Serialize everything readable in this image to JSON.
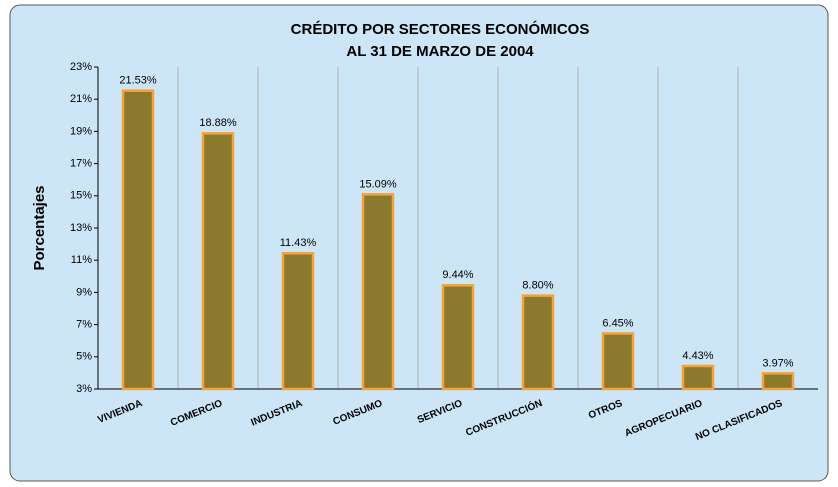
{
  "chart_data": {
    "type": "bar",
    "title": [
      "CRÉDITO POR SECTORES ECONÓMICOS",
      "AL 31 DE MARZO DE 2004"
    ],
    "y_label": "Porcentajes",
    "categories": [
      "VIVIENDA",
      "COMERCIO",
      "INDUSTRIA",
      "CONSUMO",
      "SERVICIO",
      "CONSTRUCCIÓN",
      "OTROS",
      "AGROPECUARIO",
      "NO CLASIFICADOS"
    ],
    "values": [
      21.53,
      18.88,
      11.43,
      15.09,
      9.44,
      8.8,
      6.45,
      4.43,
      3.97
    ],
    "value_labels": [
      "21.53%",
      "18.88%",
      "11.43%",
      "15.09%",
      "9.44%",
      "8.80%",
      "6.45%",
      "4.43%",
      "3.97%"
    ],
    "color": "#8b7a2e",
    "edge_color": "#f4a23c",
    "ylim": [
      3,
      23
    ],
    "yticks": [
      {
        "value": 3,
        "label": "3%"
      },
      {
        "value": 5,
        "label": "5%"
      },
      {
        "value": 7,
        "label": "7%"
      },
      {
        "value": 9,
        "label": "9%"
      },
      {
        "value": 11,
        "label": "11%"
      },
      {
        "value": 13,
        "label": "13%"
      },
      {
        "value": 15,
        "label": "15%"
      },
      {
        "value": 17,
        "label": "17%"
      },
      {
        "value": 19,
        "label": "19%"
      },
      {
        "value": 21,
        "label": "21%"
      },
      {
        "value": 23,
        "label": "23%"
      }
    ],
    "vertical_grid": true
  }
}
